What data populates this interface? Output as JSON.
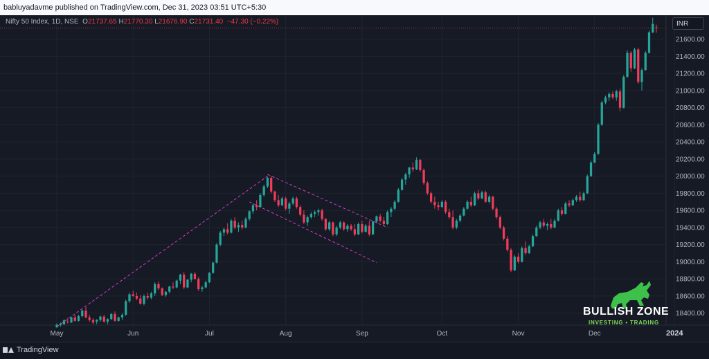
{
  "header": {
    "publisher_text": "babluyadavme published on TradingView.com, Dec 31, 2023 03:51 UTC+5:30"
  },
  "legend": {
    "symbol": "Nifty 50 Index, 1D, NSE",
    "open_label": "O",
    "open": "21737.65",
    "high_label": "H",
    "high": "21770.30",
    "low_label": "L",
    "low": "21676.90",
    "close_label": "C",
    "close": "21731.40",
    "change": "−47.30 (−0.22%)"
  },
  "currency_badge": "INR",
  "footer": {
    "brand": "TradingView"
  },
  "watermark": {
    "title": "BULLISH ZONE",
    "subtitle": "INVESTING • TRADING"
  },
  "colors": {
    "up": "#26a69a",
    "down": "#ef3c5a",
    "trendline": "#d63bc7",
    "price_line": "#f23645"
  },
  "chart_data": {
    "type": "candlestick",
    "title": "",
    "xlabel": "",
    "ylabel": "",
    "ylim": [
      18260,
      21880
    ],
    "y_ticks": [
      18400,
      18600,
      18800,
      19000,
      19200,
      19400,
      19600,
      19800,
      20000,
      20200,
      20400,
      20600,
      20800,
      21000,
      21200,
      21400,
      21600
    ],
    "x_labels": [
      "May",
      "Jun",
      "Jul",
      "Aug",
      "Sep",
      "Oct",
      "Nov",
      "Dec",
      "2024"
    ],
    "x_label_bars": [
      0,
      21,
      42,
      63,
      84,
      106,
      127,
      148,
      170
    ],
    "grid": true,
    "candles": [
      [
        18234,
        18280,
        18230,
        18265
      ],
      [
        18260,
        18290,
        18240,
        18275
      ],
      [
        18270,
        18330,
        18260,
        18315
      ],
      [
        18300,
        18340,
        18280,
        18295
      ],
      [
        18290,
        18360,
        18285,
        18350
      ],
      [
        18350,
        18380,
        18300,
        18310
      ],
      [
        18310,
        18380,
        18300,
        18365
      ],
      [
        18365,
        18440,
        18350,
        18430
      ],
      [
        18430,
        18470,
        18340,
        18350
      ],
      [
        18350,
        18380,
        18300,
        18320
      ],
      [
        18320,
        18340,
        18270,
        18290
      ],
      [
        18300,
        18330,
        18270,
        18320
      ],
      [
        18320,
        18370,
        18300,
        18360
      ],
      [
        18360,
        18380,
        18290,
        18300
      ],
      [
        18300,
        18340,
        18270,
        18330
      ],
      [
        18330,
        18400,
        18320,
        18390
      ],
      [
        18390,
        18420,
        18300,
        18310
      ],
      [
        18310,
        18360,
        18300,
        18350
      ],
      [
        18350,
        18400,
        18320,
        18380
      ],
      [
        18380,
        18560,
        18370,
        18540
      ],
      [
        18540,
        18640,
        18520,
        18620
      ],
      [
        18620,
        18660,
        18590,
        18600
      ],
      [
        18600,
        18640,
        18550,
        18570
      ],
      [
        18570,
        18610,
        18500,
        18510
      ],
      [
        18510,
        18620,
        18490,
        18600
      ],
      [
        18600,
        18640,
        18560,
        18580
      ],
      [
        18580,
        18650,
        18560,
        18630
      ],
      [
        18630,
        18760,
        18600,
        18740
      ],
      [
        18740,
        18770,
        18670,
        18690
      ],
      [
        18690,
        18700,
        18600,
        18610
      ],
      [
        18610,
        18660,
        18590,
        18650
      ],
      [
        18650,
        18720,
        18630,
        18710
      ],
      [
        18710,
        18760,
        18680,
        18700
      ],
      [
        18700,
        18790,
        18690,
        18780
      ],
      [
        18780,
        18860,
        18740,
        18850
      ],
      [
        18850,
        18880,
        18680,
        18700
      ],
      [
        18700,
        18800,
        18690,
        18790
      ],
      [
        18790,
        18870,
        18760,
        18860
      ],
      [
        18860,
        18880,
        18790,
        18800
      ],
      [
        18800,
        18820,
        18660,
        18680
      ],
      [
        18680,
        18720,
        18650,
        18700
      ],
      [
        18700,
        18780,
        18690,
        18760
      ],
      [
        18760,
        18880,
        18750,
        18870
      ],
      [
        18870,
        19000,
        18860,
        18990
      ],
      [
        18990,
        19220,
        18980,
        19200
      ],
      [
        19200,
        19360,
        19180,
        19340
      ],
      [
        19340,
        19400,
        19300,
        19380
      ],
      [
        19380,
        19450,
        19320,
        19340
      ],
      [
        19340,
        19500,
        19330,
        19480
      ],
      [
        19480,
        19520,
        19380,
        19400
      ],
      [
        19400,
        19460,
        19350,
        19430
      ],
      [
        19430,
        19480,
        19380,
        19400
      ],
      [
        19400,
        19520,
        19390,
        19500
      ],
      [
        19500,
        19600,
        19480,
        19590
      ],
      [
        19590,
        19680,
        19560,
        19660
      ],
      [
        19660,
        19720,
        19600,
        19640
      ],
      [
        19640,
        19800,
        19630,
        19780
      ],
      [
        19780,
        19900,
        19760,
        19880
      ],
      [
        19880,
        19990,
        19860,
        19980
      ],
      [
        19980,
        20000,
        19800,
        19820
      ],
      [
        19820,
        19830,
        19700,
        19720
      ],
      [
        19720,
        19780,
        19640,
        19660
      ],
      [
        19660,
        19760,
        19650,
        19740
      ],
      [
        19740,
        19760,
        19600,
        19620
      ],
      [
        19620,
        19700,
        19560,
        19680
      ],
      [
        19680,
        19760,
        19660,
        19740
      ],
      [
        19740,
        19760,
        19620,
        19640
      ],
      [
        19640,
        19660,
        19530,
        19550
      ],
      [
        19550,
        19600,
        19440,
        19460
      ],
      [
        19460,
        19540,
        19420,
        19520
      ],
      [
        19520,
        19580,
        19500,
        19560
      ],
      [
        19560,
        19600,
        19520,
        19580
      ],
      [
        19580,
        19620,
        19540,
        19600
      ],
      [
        19600,
        19620,
        19480,
        19500
      ],
      [
        19500,
        19510,
        19360,
        19380
      ],
      [
        19380,
        19480,
        19360,
        19460
      ],
      [
        19460,
        19470,
        19300,
        19320
      ],
      [
        19320,
        19420,
        19300,
        19400
      ],
      [
        19400,
        19480,
        19380,
        19460
      ],
      [
        19460,
        19470,
        19360,
        19380
      ],
      [
        19380,
        19440,
        19350,
        19420
      ],
      [
        19420,
        19440,
        19360,
        19380
      ],
      [
        19380,
        19440,
        19300,
        19320
      ],
      [
        19320,
        19460,
        19310,
        19440
      ],
      [
        19440,
        19480,
        19330,
        19350
      ],
      [
        19350,
        19440,
        19340,
        19420
      ],
      [
        19420,
        19480,
        19300,
        19320
      ],
      [
        19320,
        19480,
        19310,
        19470
      ],
      [
        19470,
        19540,
        19450,
        19530
      ],
      [
        19530,
        19560,
        19460,
        19480
      ],
      [
        19480,
        19520,
        19420,
        19440
      ],
      [
        19440,
        19600,
        19430,
        19580
      ],
      [
        19580,
        19640,
        19520,
        19620
      ],
      [
        19620,
        19720,
        19600,
        19700
      ],
      [
        19700,
        19860,
        19690,
        19840
      ],
      [
        19840,
        19980,
        19830,
        19960
      ],
      [
        19960,
        20040,
        19900,
        20020
      ],
      [
        20020,
        20110,
        19980,
        20100
      ],
      [
        20100,
        20160,
        20050,
        20080
      ],
      [
        20080,
        20220,
        20070,
        20190
      ],
      [
        20190,
        20200,
        20050,
        20070
      ],
      [
        20070,
        20090,
        19900,
        19920
      ],
      [
        19920,
        19940,
        19780,
        19800
      ],
      [
        19800,
        19820,
        19680,
        19700
      ],
      [
        19700,
        19760,
        19620,
        19660
      ],
      [
        19660,
        19700,
        19600,
        19640
      ],
      [
        19640,
        19720,
        19630,
        19700
      ],
      [
        19700,
        19720,
        19560,
        19580
      ],
      [
        19580,
        19620,
        19500,
        19520
      ],
      [
        19520,
        19600,
        19380,
        19400
      ],
      [
        19400,
        19500,
        19380,
        19480
      ],
      [
        19480,
        19560,
        19460,
        19540
      ],
      [
        19540,
        19640,
        19530,
        19620
      ],
      [
        19620,
        19720,
        19610,
        19700
      ],
      [
        19700,
        19760,
        19640,
        19660
      ],
      [
        19660,
        19820,
        19650,
        19800
      ],
      [
        19800,
        19840,
        19720,
        19740
      ],
      [
        19740,
        19830,
        19730,
        19810
      ],
      [
        19810,
        19830,
        19690,
        19700
      ],
      [
        19700,
        19780,
        19680,
        19760
      ],
      [
        19760,
        19770,
        19600,
        19620
      ],
      [
        19620,
        19640,
        19500,
        19520
      ],
      [
        19520,
        19540,
        19380,
        19400
      ],
      [
        19400,
        19420,
        19250,
        19270
      ],
      [
        19270,
        19300,
        19120,
        19140
      ],
      [
        19140,
        19160,
        18880,
        18900
      ],
      [
        18900,
        19080,
        18890,
        19060
      ],
      [
        19060,
        19100,
        18980,
        19000
      ],
      [
        19000,
        19180,
        18990,
        19160
      ],
      [
        19160,
        19240,
        19080,
        19100
      ],
      [
        19100,
        19200,
        19090,
        19180
      ],
      [
        19180,
        19320,
        19170,
        19300
      ],
      [
        19300,
        19420,
        19290,
        19400
      ],
      [
        19400,
        19480,
        19380,
        19460
      ],
      [
        19460,
        19500,
        19400,
        19420
      ],
      [
        19420,
        19460,
        19370,
        19440
      ],
      [
        19440,
        19500,
        19380,
        19400
      ],
      [
        19400,
        19500,
        19390,
        19480
      ],
      [
        19480,
        19620,
        19470,
        19600
      ],
      [
        19600,
        19640,
        19540,
        19560
      ],
      [
        19560,
        19700,
        19550,
        19680
      ],
      [
        19680,
        19720,
        19640,
        19660
      ],
      [
        19660,
        19740,
        19650,
        19720
      ],
      [
        19720,
        19780,
        19700,
        19760
      ],
      [
        19760,
        19820,
        19700,
        19720
      ],
      [
        19720,
        19820,
        19710,
        19800
      ],
      [
        19800,
        20020,
        19790,
        20000
      ],
      [
        20000,
        20180,
        19990,
        20160
      ],
      [
        20160,
        20280,
        20150,
        20260
      ],
      [
        20260,
        20620,
        20250,
        20600
      ],
      [
        20600,
        20880,
        20590,
        20860
      ],
      [
        20860,
        20940,
        20840,
        20920
      ],
      [
        20920,
        20980,
        20880,
        20960
      ],
      [
        20960,
        20990,
        20900,
        20920
      ],
      [
        20920,
        21010,
        20880,
        20990
      ],
      [
        20990,
        21020,
        20760,
        20800
      ],
      [
        20800,
        21180,
        20790,
        21160
      ],
      [
        21160,
        21470,
        21150,
        21440
      ],
      [
        21440,
        21460,
        21220,
        21260
      ],
      [
        21260,
        21500,
        21250,
        21480
      ],
      [
        21480,
        21500,
        21080,
        21100
      ],
      [
        21100,
        21260,
        21000,
        21240
      ],
      [
        21240,
        21460,
        21230,
        21440
      ],
      [
        21440,
        21700,
        21430,
        21680
      ],
      [
        21680,
        21850,
        21670,
        21778
      ],
      [
        21737.65,
        21770.3,
        21676.9,
        21731.4
      ]
    ],
    "trendlines": [
      {
        "from": [
          0,
          18240
        ],
        "to": [
          58,
          20000
        ]
      },
      {
        "from": [
          58,
          20020
        ],
        "to": [
          91,
          19400
        ]
      },
      {
        "from": [
          53,
          19700
        ],
        "to": [
          88,
          18990
        ]
      }
    ],
    "last_price_line": 21731.4
  }
}
